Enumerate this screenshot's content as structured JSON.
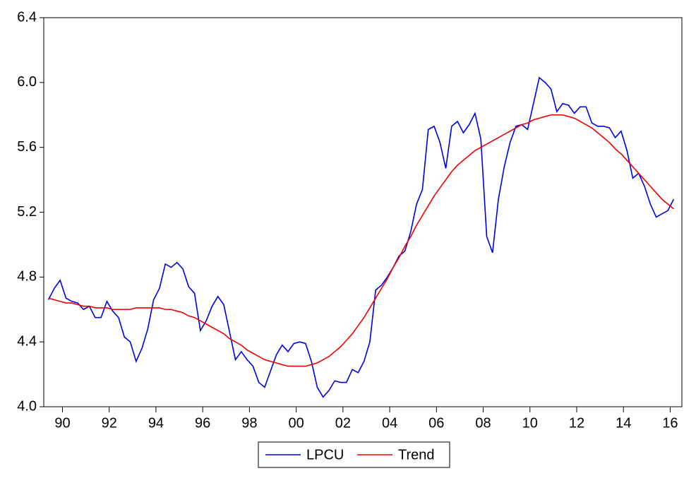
{
  "chart_data": {
    "type": "line",
    "x": [
      1990,
      1990.25,
      1990.5,
      1990.75,
      1991,
      1991.25,
      1991.5,
      1991.75,
      1992,
      1992.25,
      1992.5,
      1992.75,
      1993,
      1993.25,
      1993.5,
      1993.75,
      1994,
      1994.25,
      1994.5,
      1994.75,
      1995,
      1995.25,
      1995.5,
      1995.75,
      1996,
      1996.25,
      1996.5,
      1996.75,
      1997,
      1997.25,
      1997.5,
      1997.75,
      1998,
      1998.25,
      1998.5,
      1998.75,
      1999,
      1999.25,
      1999.5,
      1999.75,
      2000,
      2000.25,
      2000.5,
      2000.75,
      2001,
      2001.25,
      2001.5,
      2001.75,
      2002,
      2002.25,
      2002.5,
      2002.75,
      2003,
      2003.25,
      2003.5,
      2003.75,
      2004,
      2004.25,
      2004.5,
      2004.75,
      2005,
      2005.25,
      2005.5,
      2005.75,
      2006,
      2006.25,
      2006.5,
      2006.75,
      2007,
      2007.25,
      2007.5,
      2007.75,
      2008,
      2008.25,
      2008.5,
      2008.75,
      2009,
      2009.25,
      2009.5,
      2009.75,
      2010,
      2010.25,
      2010.5,
      2010.75,
      2011,
      2011.25,
      2011.5,
      2011.75,
      2012,
      2012.25,
      2012.5,
      2012.75,
      2013,
      2013.25,
      2013.5,
      2013.75,
      2014,
      2014.25,
      2014.5,
      2014.75,
      2015,
      2015.25,
      2015.5,
      2015.75,
      2016,
      2016.25,
      2016.5,
      2016.75
    ],
    "series": [
      {
        "name": "LPCU",
        "color": "#0000dd",
        "values": [
          4.66,
          4.73,
          4.78,
          4.67,
          4.65,
          4.64,
          4.6,
          4.62,
          4.55,
          4.55,
          4.65,
          4.59,
          4.55,
          4.43,
          4.4,
          4.28,
          4.36,
          4.48,
          4.66,
          4.73,
          4.88,
          4.86,
          4.89,
          4.85,
          4.74,
          4.7,
          4.47,
          4.53,
          4.62,
          4.68,
          4.63,
          4.46,
          4.29,
          4.34,
          4.29,
          4.25,
          4.15,
          4.12,
          4.22,
          4.32,
          4.38,
          4.34,
          4.39,
          4.4,
          4.39,
          4.28,
          4.12,
          4.06,
          4.1,
          4.16,
          4.15,
          4.15,
          4.23,
          4.21,
          4.28,
          4.4,
          4.72,
          4.75,
          4.8,
          4.86,
          4.93,
          4.96,
          5.08,
          5.25,
          5.34,
          5.71,
          5.73,
          5.63,
          5.47,
          5.73,
          5.76,
          5.69,
          5.74,
          5.81,
          5.65,
          5.05,
          4.95,
          5.28,
          5.48,
          5.63,
          5.73,
          5.74,
          5.71,
          5.87,
          6.03,
          6.0,
          5.96,
          5.82,
          5.87,
          5.86,
          5.81,
          5.85,
          5.85,
          5.75,
          5.73,
          5.73,
          5.72,
          5.66,
          5.7,
          5.58,
          5.41,
          5.44,
          5.36,
          5.25,
          5.17,
          5.19,
          5.21,
          5.28
        ]
      },
      {
        "name": "Trend",
        "color": "#ee0000",
        "values": [
          4.67,
          4.66,
          4.65,
          4.64,
          4.64,
          4.63,
          4.62,
          4.62,
          4.61,
          4.61,
          4.61,
          4.6,
          4.6,
          4.6,
          4.6,
          4.61,
          4.61,
          4.61,
          4.61,
          4.61,
          4.6,
          4.6,
          4.59,
          4.58,
          4.56,
          4.55,
          4.53,
          4.51,
          4.49,
          4.47,
          4.45,
          4.42,
          4.4,
          4.38,
          4.35,
          4.33,
          4.31,
          4.29,
          4.28,
          4.27,
          4.26,
          4.25,
          4.25,
          4.25,
          4.25,
          4.26,
          4.27,
          4.29,
          4.31,
          4.34,
          4.37,
          4.41,
          4.45,
          4.5,
          4.55,
          4.61,
          4.67,
          4.73,
          4.79,
          4.86,
          4.92,
          4.99,
          5.05,
          5.12,
          5.18,
          5.24,
          5.3,
          5.35,
          5.4,
          5.45,
          5.49,
          5.52,
          5.55,
          5.58,
          5.6,
          5.62,
          5.64,
          5.66,
          5.68,
          5.7,
          5.72,
          5.74,
          5.75,
          5.77,
          5.78,
          5.79,
          5.8,
          5.8,
          5.8,
          5.79,
          5.78,
          5.76,
          5.74,
          5.72,
          5.69,
          5.66,
          5.63,
          5.59,
          5.56,
          5.52,
          5.48,
          5.44,
          5.4,
          5.36,
          5.32,
          5.28,
          5.25,
          5.22
        ]
      }
    ],
    "xlim": [
      1989.8,
      2017.1
    ],
    "xticks": [
      {
        "value": 1990.6,
        "label": "90"
      },
      {
        "value": 1992.6,
        "label": "92"
      },
      {
        "value": 1994.6,
        "label": "94"
      },
      {
        "value": 1996.6,
        "label": "96"
      },
      {
        "value": 1998.6,
        "label": "98"
      },
      {
        "value": 2000.6,
        "label": "00"
      },
      {
        "value": 2002.6,
        "label": "02"
      },
      {
        "value": 2004.6,
        "label": "04"
      },
      {
        "value": 2006.6,
        "label": "06"
      },
      {
        "value": 2008.6,
        "label": "08"
      },
      {
        "value": 2010.6,
        "label": "10"
      },
      {
        "value": 2012.6,
        "label": "12"
      },
      {
        "value": 2014.6,
        "label": "14"
      },
      {
        "value": 2016.6,
        "label": "16"
      }
    ],
    "ylim": [
      4.0,
      6.4
    ],
    "yticks": [
      {
        "value": 4,
        "label": "4.0"
      },
      4.4,
      4.8,
      5.2,
      5.6,
      {
        "value": 6,
        "label": "6.0"
      },
      6.4
    ],
    "legend": "bottom"
  }
}
